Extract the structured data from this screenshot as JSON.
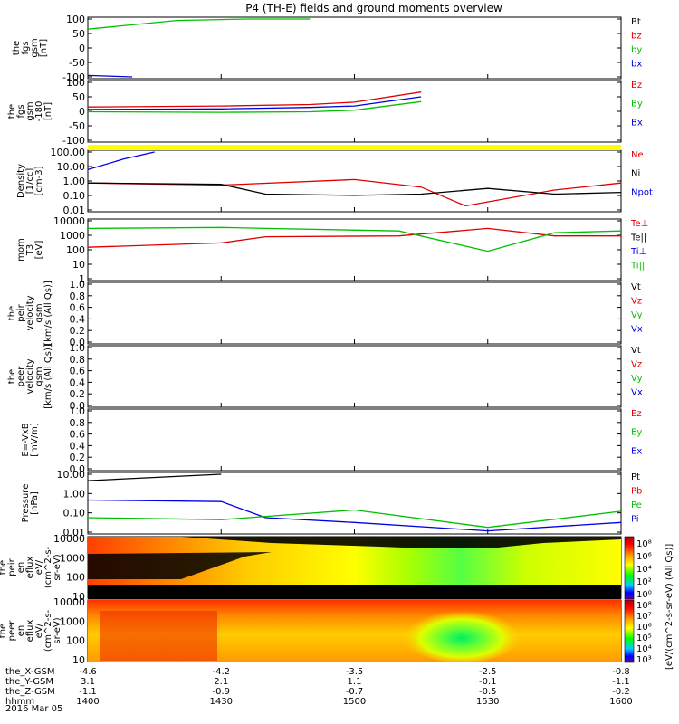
{
  "title": "P4 (TH-E) fields and ground moments overview",
  "panels": [
    {
      "id": "fgs",
      "ylabel": [
        "the",
        "fgs",
        "gsm",
        "[nT]"
      ],
      "ticks": [
        "100",
        "50",
        "0",
        "-50",
        "-100"
      ],
      "legend": [
        {
          "label": "Bt",
          "color": "#000000"
        },
        {
          "label": "bz",
          "color": "#e00000"
        },
        {
          "label": "by",
          "color": "#00c000"
        },
        {
          "label": "bx",
          "color": "#0000e0"
        }
      ]
    },
    {
      "id": "fgs2",
      "ylabel": [
        "the",
        "fgs",
        "gsm",
        "-180",
        "[nT]"
      ],
      "ticks": [
        "100",
        "50",
        "0",
        "-50",
        "-100"
      ],
      "legend": [
        {
          "label": "Bz",
          "color": "#e00000"
        },
        {
          "label": "By",
          "color": "#00c000"
        },
        {
          "label": "Bx",
          "color": "#0000e0"
        }
      ]
    },
    {
      "id": "density",
      "ylabel": [
        "Density",
        "[1/cc]",
        "[cm-3]"
      ],
      "ticks": [
        "100.00",
        "10.00",
        "1.00",
        "0.10",
        "0.01"
      ],
      "legend": [
        {
          "label": "Ne",
          "color": "#e00000"
        },
        {
          "label": "Ni",
          "color": "#000000"
        },
        {
          "label": "Npot",
          "color": "#0000e0"
        }
      ]
    },
    {
      "id": "temp",
      "ylabel": [
        "mom",
        "T3",
        "[eV]"
      ],
      "ticks": [
        "10000",
        "1000",
        "100",
        "10",
        "1"
      ],
      "legend": [
        {
          "label": "Te⊥",
          "color": "#e00000"
        },
        {
          "label": "Te||",
          "color": "#000000"
        },
        {
          "label": "Ti⊥",
          "color": "#0000e0"
        },
        {
          "label": "Ti||",
          "color": "#00c000"
        }
      ]
    },
    {
      "id": "peirvel",
      "ylabel": [
        "the",
        "peir",
        "velocity",
        "gsm",
        "[km/s (All Qs)]"
      ],
      "ticks": [
        "1.0",
        "0.8",
        "0.6",
        "0.4",
        "0.2",
        "0.0"
      ],
      "legend": [
        {
          "label": "Vt",
          "color": "#000000"
        },
        {
          "label": "Vz",
          "color": "#e00000"
        },
        {
          "label": "Vy",
          "color": "#00c000"
        },
        {
          "label": "Vx",
          "color": "#0000e0"
        }
      ]
    },
    {
      "id": "peervel",
      "ylabel": [
        "the",
        "peer",
        "velocity",
        "gsm",
        "[km/s (All Qs)]"
      ],
      "ticks": [
        "1.0",
        "0.8",
        "0.6",
        "0.4",
        "0.2",
        "0.0"
      ],
      "legend": [
        {
          "label": "Vt",
          "color": "#000000"
        },
        {
          "label": "Vz",
          "color": "#e00000"
        },
        {
          "label": "Vy",
          "color": "#00c000"
        },
        {
          "label": "Vx",
          "color": "#0000e0"
        }
      ]
    },
    {
      "id": "efield",
      "ylabel": [
        "E=-VxB",
        "[mV/m]"
      ],
      "ticks": [
        "1.0",
        "0.8",
        "0.6",
        "0.4",
        "0.2",
        "0.0"
      ],
      "legend": [
        {
          "label": "Ez",
          "color": "#e00000"
        },
        {
          "label": "Ey",
          "color": "#00c000"
        },
        {
          "label": "Ex",
          "color": "#0000e0"
        }
      ]
    },
    {
      "id": "pressure",
      "ylabel": [
        "Pressure",
        "[nPa]"
      ],
      "ticks": [
        "10.00",
        "1.00",
        "0.10",
        "0.01"
      ],
      "legend": [
        {
          "label": "Pt",
          "color": "#000000"
        },
        {
          "label": "Pb",
          "color": "#e00000"
        },
        {
          "label": "Pe",
          "color": "#00c000"
        },
        {
          "label": "Pi",
          "color": "#0000e0"
        }
      ]
    },
    {
      "id": "peirflux",
      "ylabel": [
        "the",
        "peir",
        "en",
        "eflux",
        "eV/",
        "(cm^2-s-",
        "sr-eV)"
      ],
      "ticks": [
        "10000",
        "1000",
        "100",
        "10"
      ]
    },
    {
      "id": "peerflux",
      "ylabel": [
        "the",
        "peer",
        "en",
        "eflux",
        "eV/",
        "(cm^2-s-",
        "sr-eV)"
      ],
      "ticks": [
        "10000",
        "1000",
        "100",
        "10"
      ]
    }
  ],
  "colorbar": {
    "label": "[eV/(cm^2-s-sr-eV) (All Qs)]",
    "ticks_top": [
      "10⁸",
      "10⁶",
      "10⁴",
      "10²",
      "10⁰"
    ],
    "ticks_bottom": [
      "10⁸",
      "10⁷",
      "10⁶",
      "10⁵",
      "10⁴",
      "10³"
    ]
  },
  "footer": {
    "rows": [
      {
        "label": "the_X-GSM",
        "values": [
          "-4.6",
          "-4.2",
          "-3.5",
          "-2.5",
          "-0.8"
        ]
      },
      {
        "label": "the_Y-GSM",
        "values": [
          "3.1",
          "2.1",
          "1.1",
          "-0.1",
          "-1.1"
        ]
      },
      {
        "label": "the_Z-GSM",
        "values": [
          "-1.1",
          "-0.9",
          "-0.7",
          "-0.5",
          "-0.2"
        ]
      },
      {
        "label": "hhmm",
        "values": [
          "1400",
          "1430",
          "1500",
          "1530",
          "1600"
        ]
      }
    ],
    "date": "2016 Mar 05"
  },
  "chart_data": {
    "type": "line",
    "title": "P4 (TH-E) fields and ground moments overview",
    "x_label": "hhmm",
    "x_ticks": [
      "1400",
      "1430",
      "1500",
      "1530",
      "1600"
    ],
    "panels": [
      {
        "name": "fgs gsm",
        "ylim": [
          -100,
          100
        ],
        "series": [
          {
            "name": "by",
            "x": [
              "1400",
              "1420",
              "1436",
              "1450"
            ],
            "values": [
              65,
              95,
              100,
              100
            ]
          },
          {
            "name": "bx",
            "x": [
              "1400",
              "1410"
            ],
            "values": [
              -95,
              -100
            ]
          }
        ]
      },
      {
        "name": "fgs gsm -180",
        "ylim": [
          -120,
          120
        ],
        "series": [
          {
            "name": "Bz",
            "x": [
              "1400",
              "1430",
              "1450",
              "1500",
              "1515"
            ],
            "values": [
              18,
              22,
              28,
              38,
              80
            ]
          },
          {
            "name": "Bx",
            "x": [
              "1400",
              "1430",
              "1450",
              "1500",
              "1515"
            ],
            "values": [
              8,
              10,
              16,
              22,
              60
            ]
          },
          {
            "name": "By",
            "x": [
              "1400",
              "1430",
              "1450",
              "1500",
              "1515"
            ],
            "values": [
              -2,
              -4,
              -2,
              5,
              40
            ]
          }
        ]
      },
      {
        "name": "Density",
        "log": true,
        "ylim": [
          0.01,
          200
        ],
        "series": [
          {
            "name": "Ne",
            "x": [
              "1400",
              "1430",
              "1500",
              "1515",
              "1525",
              "1545",
              "1600"
            ],
            "values": [
              1.0,
              0.7,
              1.8,
              0.5,
              0.02,
              0.3,
              1.0
            ]
          },
          {
            "name": "Ni",
            "x": [
              "1400",
              "1430",
              "1440",
              "1500",
              "1515",
              "1530",
              "1545",
              "1600"
            ],
            "values": [
              1.0,
              0.8,
              0.15,
              0.12,
              0.15,
              0.4,
              0.15,
              0.2
            ]
          },
          {
            "name": "Npot",
            "x": [
              "1400",
              "1408",
              "1415"
            ],
            "values": [
              10,
              60,
              200
            ]
          }
        ]
      },
      {
        "name": "momT3",
        "log": true,
        "ylim": [
          1,
          10000
        ],
        "series": [
          {
            "name": "Te⊥",
            "x": [
              "1400",
              "1430",
              "1440",
              "1510",
              "1530",
              "1545",
              "1600"
            ],
            "values": [
              150,
              300,
              800,
              900,
              3000,
              900,
              900
            ]
          },
          {
            "name": "Ti||",
            "x": [
              "1400",
              "1430",
              "1440",
              "1510",
              "1530",
              "1545",
              "1600"
            ],
            "values": [
              3000,
              3500,
              3000,
              2000,
              80,
              1500,
              2000
            ]
          }
        ]
      },
      {
        "name": "Pressure",
        "log": true,
        "ylim": [
          0.005,
          20
        ],
        "series": [
          {
            "name": "Pt",
            "x": [
              "1400",
              "1430"
            ],
            "values": [
              8,
              20
            ]
          },
          {
            "name": "Pi",
            "x": [
              "1400",
              "1430",
              "1440",
              "1500",
              "1530",
              "1600"
            ],
            "values": [
              0.5,
              0.4,
              0.04,
              0.02,
              0.006,
              0.02
            ]
          },
          {
            "name": "Pe",
            "x": [
              "1400",
              "1430",
              "1500",
              "1530",
              "1600"
            ],
            "values": [
              0.04,
              0.03,
              0.12,
              0.01,
              0.1
            ]
          }
        ]
      }
    ]
  }
}
